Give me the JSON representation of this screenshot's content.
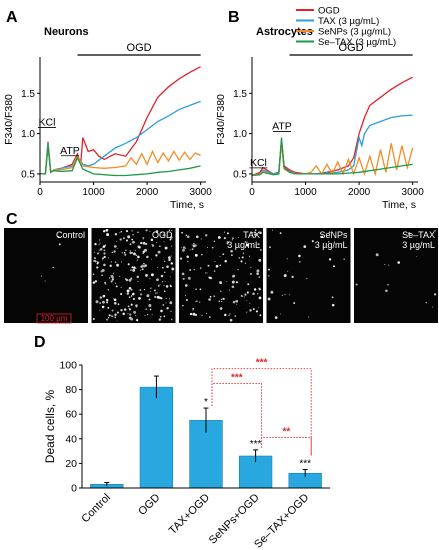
{
  "panels": {
    "a": "A",
    "b": "B",
    "c": "C",
    "d": "D"
  },
  "colors": {
    "OGD": "#e1222a",
    "TAX (3 µg/mL)": "#2a9fd8",
    "SeNPs (3 µg/mL)": "#f28c28",
    "Se–TAX (3 µg/mL)": "#1f9a48",
    "bar": "#29a8e0",
    "sig": "#e1222a"
  },
  "legend": [
    "OGD",
    "TAX (3 µg/mL)",
    "SeNPs (3 µg/mL)",
    "Se–TAX (3 µg/mL)"
  ],
  "micrographs": [
    {
      "label": "Control",
      "sub": "",
      "density": 0.02
    },
    {
      "label": "OGD",
      "sub": "",
      "density": 1.0
    },
    {
      "label": "TAX",
      "sub": "3 µg/mL",
      "density": 0.55
    },
    {
      "label": "SeNPs",
      "sub": "3 µg/mL",
      "density": 0.12
    },
    {
      "label": "Se–TAX",
      "sub": "3 µg/mL",
      "density": 0.05
    }
  ],
  "scale_bar": "100 µm",
  "chart_data": [
    {
      "type": "line",
      "title": "Neurons",
      "xlabel": "Time, s",
      "ylabel": "F340/F380",
      "xlim": [
        0,
        3100
      ],
      "ylim": [
        0.4,
        1.95
      ],
      "xticks": [
        0,
        1000,
        2000,
        3000
      ],
      "yticks": [
        0.5,
        1.0,
        1.5
      ],
      "bar_label": "OGD",
      "bar_range": [
        700,
        3000
      ],
      "annotations": [
        {
          "text": "KCl",
          "x": 130,
          "y": 1.1
        },
        {
          "text": "ATP",
          "x": 560,
          "y": 0.75
        }
      ],
      "series": [
        {
          "name": "OGD",
          "x": [
            0,
            100,
            150,
            200,
            260,
            400,
            600,
            700,
            760,
            800,
            900,
            1000,
            1100,
            1200,
            1400,
            1600,
            1800,
            2000,
            2200,
            2400,
            2600,
            2800,
            3000
          ],
          "y": [
            0.5,
            0.5,
            0.9,
            0.52,
            0.55,
            0.57,
            0.62,
            0.75,
            0.62,
            0.95,
            0.78,
            0.8,
            0.72,
            0.68,
            0.75,
            0.72,
            0.9,
            1.2,
            1.45,
            1.58,
            1.68,
            1.76,
            1.83
          ]
        },
        {
          "name": "TAX (3 µg/mL)",
          "x": [
            0,
            100,
            150,
            200,
            260,
            400,
            600,
            700,
            800,
            900,
            1000,
            1200,
            1400,
            1600,
            1800,
            2000,
            2200,
            2400,
            2600,
            2800,
            3000
          ],
          "y": [
            0.5,
            0.5,
            0.88,
            0.52,
            0.55,
            0.57,
            0.6,
            0.72,
            0.62,
            0.6,
            0.62,
            0.72,
            0.82,
            0.88,
            0.95,
            1.05,
            1.15,
            1.22,
            1.3,
            1.35,
            1.4
          ]
        },
        {
          "name": "SeNPs (3 µg/mL)",
          "x": [
            0,
            100,
            150,
            200,
            260,
            400,
            600,
            700,
            800,
            1000,
            1200,
            1400,
            1600,
            1700,
            1800,
            1900,
            2000,
            2100,
            2200,
            2300,
            2400,
            2500,
            2600,
            2700,
            2800,
            2900,
            3000
          ],
          "y": [
            0.5,
            0.5,
            0.85,
            0.52,
            0.55,
            0.55,
            0.58,
            0.72,
            0.6,
            0.58,
            0.57,
            0.58,
            0.6,
            0.7,
            0.62,
            0.75,
            0.62,
            0.78,
            0.64,
            0.76,
            0.66,
            0.78,
            0.67,
            0.77,
            0.68,
            0.76,
            0.73
          ]
        },
        {
          "name": "Se–TAX (3 µg/mL)",
          "x": [
            0,
            100,
            150,
            200,
            260,
            400,
            600,
            700,
            800,
            1000,
            1200,
            1400,
            1600,
            1800,
            2000,
            2200,
            2400,
            2600,
            2800,
            3000
          ],
          "y": [
            0.5,
            0.5,
            0.85,
            0.52,
            0.54,
            0.53,
            0.54,
            0.7,
            0.56,
            0.5,
            0.49,
            0.48,
            0.48,
            0.49,
            0.5,
            0.52,
            0.53,
            0.55,
            0.57,
            0.6
          ]
        }
      ]
    },
    {
      "type": "line",
      "title": "Astrocytes",
      "xlabel": "Time, s",
      "ylabel": "F340/F380",
      "xlim": [
        0,
        3100
      ],
      "ylim": [
        0.4,
        1.95
      ],
      "xticks": [
        0,
        1000,
        2000,
        3000
      ],
      "yticks": [
        0.5,
        1.0,
        1.5
      ],
      "bar_label": "OGD",
      "bar_range": [
        700,
        3000
      ],
      "annotations": [
        {
          "text": "KCl",
          "x": 120,
          "y": 0.6
        },
        {
          "text": "ATP",
          "x": 560,
          "y": 1.05
        }
      ],
      "series": [
        {
          "name": "OGD",
          "x": [
            0,
            150,
            200,
            400,
            500,
            550,
            600,
            700,
            800,
            1000,
            1200,
            1400,
            1600,
            1800,
            1900,
            2000,
            2100,
            2200,
            2400,
            2600,
            2800,
            3000
          ],
          "y": [
            0.48,
            0.52,
            0.58,
            0.5,
            0.52,
            0.92,
            0.6,
            0.55,
            0.52,
            0.5,
            0.5,
            0.52,
            0.55,
            0.6,
            0.7,
            1.0,
            1.2,
            1.35,
            1.45,
            1.55,
            1.63,
            1.7
          ]
        },
        {
          "name": "TAX (3 µg/mL)",
          "x": [
            0,
            150,
            200,
            400,
            500,
            550,
            600,
            700,
            800,
            1000,
            1200,
            1400,
            1600,
            1800,
            1900,
            2000,
            2050,
            2100,
            2200,
            2400,
            2600,
            2800,
            3000
          ],
          "y": [
            0.48,
            0.5,
            0.55,
            0.5,
            0.52,
            0.9,
            0.58,
            0.53,
            0.5,
            0.5,
            0.5,
            0.51,
            0.52,
            0.55,
            0.6,
            0.95,
            0.85,
            1.0,
            1.1,
            1.15,
            1.2,
            1.22,
            1.23
          ]
        },
        {
          "name": "SeNPs (3 µg/mL)",
          "x": [
            0,
            150,
            200,
            400,
            500,
            550,
            600,
            700,
            800,
            1000,
            1100,
            1200,
            1300,
            1400,
            1500,
            1600,
            1700,
            1800,
            1900,
            2000,
            2100,
            2200,
            2300,
            2400,
            2500,
            2600,
            2700,
            2800,
            2900,
            3000
          ],
          "y": [
            0.48,
            0.5,
            0.53,
            0.49,
            0.5,
            0.88,
            0.56,
            0.52,
            0.5,
            0.5,
            0.52,
            0.6,
            0.5,
            0.62,
            0.5,
            0.65,
            0.5,
            0.68,
            0.5,
            0.7,
            0.5,
            0.72,
            0.5,
            0.8,
            0.52,
            0.88,
            0.55,
            0.85,
            0.58,
            0.82
          ]
        },
        {
          "name": "Se–TAX (3 µg/mL)",
          "x": [
            0,
            150,
            200,
            400,
            500,
            550,
            600,
            700,
            800,
            1000,
            1200,
            1400,
            1600,
            1800,
            2000,
            2200,
            2400,
            2600,
            2800,
            3000
          ],
          "y": [
            0.48,
            0.49,
            0.52,
            0.49,
            0.5,
            0.95,
            0.58,
            0.52,
            0.5,
            0.5,
            0.5,
            0.5,
            0.5,
            0.51,
            0.52,
            0.54,
            0.56,
            0.58,
            0.6,
            0.62
          ]
        }
      ]
    },
    {
      "type": "bar",
      "xlabel": "",
      "ylabel": "Dead cells, %",
      "ylim": [
        0,
        100
      ],
      "yticks": [
        0,
        20,
        40,
        60,
        80,
        100
      ],
      "categories": [
        "Control",
        "OGD",
        "TAX+OGD",
        "SeNPs+OGD",
        "Se–TAX+OGD"
      ],
      "values": [
        3,
        82,
        55,
        26,
        12
      ],
      "errors": [
        1.5,
        9,
        10,
        5,
        3
      ],
      "bar_stars": [
        "",
        "",
        "*",
        "***",
        "***"
      ],
      "comparisons": [
        {
          "from": 2,
          "to": 4,
          "label": "***",
          "y": 97
        },
        {
          "from": 2,
          "to": 3,
          "label": "***",
          "y": 85
        },
        {
          "from": 3,
          "to": 4,
          "label": "**",
          "y": 41
        }
      ]
    }
  ]
}
